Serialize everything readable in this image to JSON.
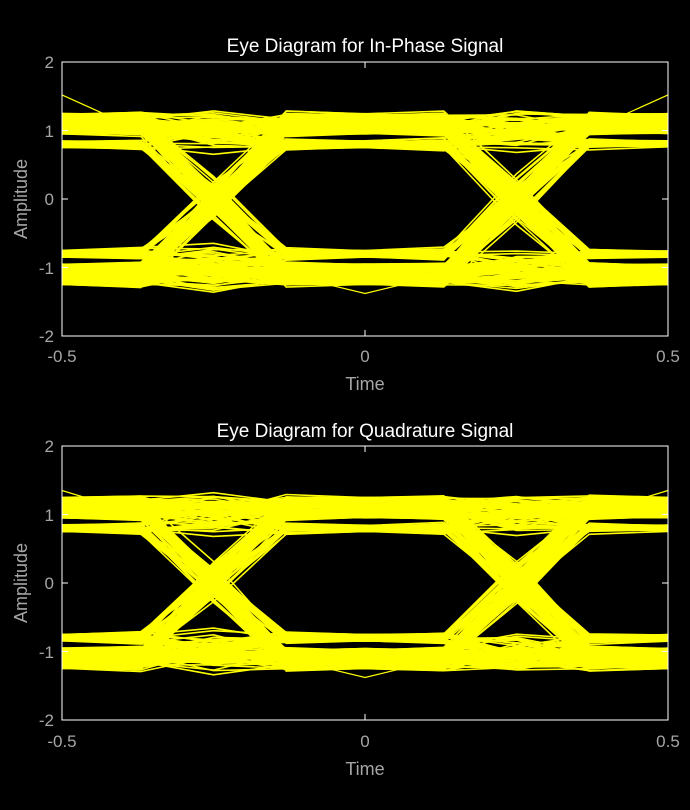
{
  "chart_data": [
    {
      "type": "line",
      "title": "Eye Diagram for In-Phase Signal",
      "xlabel": "Time",
      "ylabel": "Amplitude",
      "xlim": [
        -0.5,
        0.5
      ],
      "ylim": [
        -2,
        2
      ],
      "xticks": [
        "-0.5",
        "0",
        "0.5"
      ],
      "yticks": [
        "2",
        "1",
        "0",
        "-1",
        "-2"
      ],
      "grid": false,
      "legend": "none",
      "background": "#000000",
      "series_color": "#ffff00",
      "crossing_times": [
        -0.25,
        0.25
      ],
      "eye_levels": {
        "outer": 1.0,
        "inner": 0.75,
        "band_spread": 0.3
      },
      "outlier_extremes": {
        "max": 1.52,
        "min": -1.38
      },
      "trace_count": 300
    },
    {
      "type": "line",
      "title": "Eye Diagram for Quadrature Signal",
      "xlabel": "Time",
      "ylabel": "Amplitude",
      "xlim": [
        -0.5,
        0.5
      ],
      "ylim": [
        -2,
        2
      ],
      "xticks": [
        "-0.5",
        "0",
        "0.5"
      ],
      "yticks": [
        "2",
        "1",
        "0",
        "-1",
        "-2"
      ],
      "grid": false,
      "legend": "none",
      "background": "#000000",
      "series_color": "#ffff00",
      "crossing_times": [
        -0.25,
        0.25
      ],
      "eye_levels": {
        "outer": 1.0,
        "inner": 0.75,
        "band_spread": 0.3
      },
      "outlier_extremes": {
        "max": 1.35,
        "min": -1.38
      },
      "trace_count": 300
    }
  ]
}
